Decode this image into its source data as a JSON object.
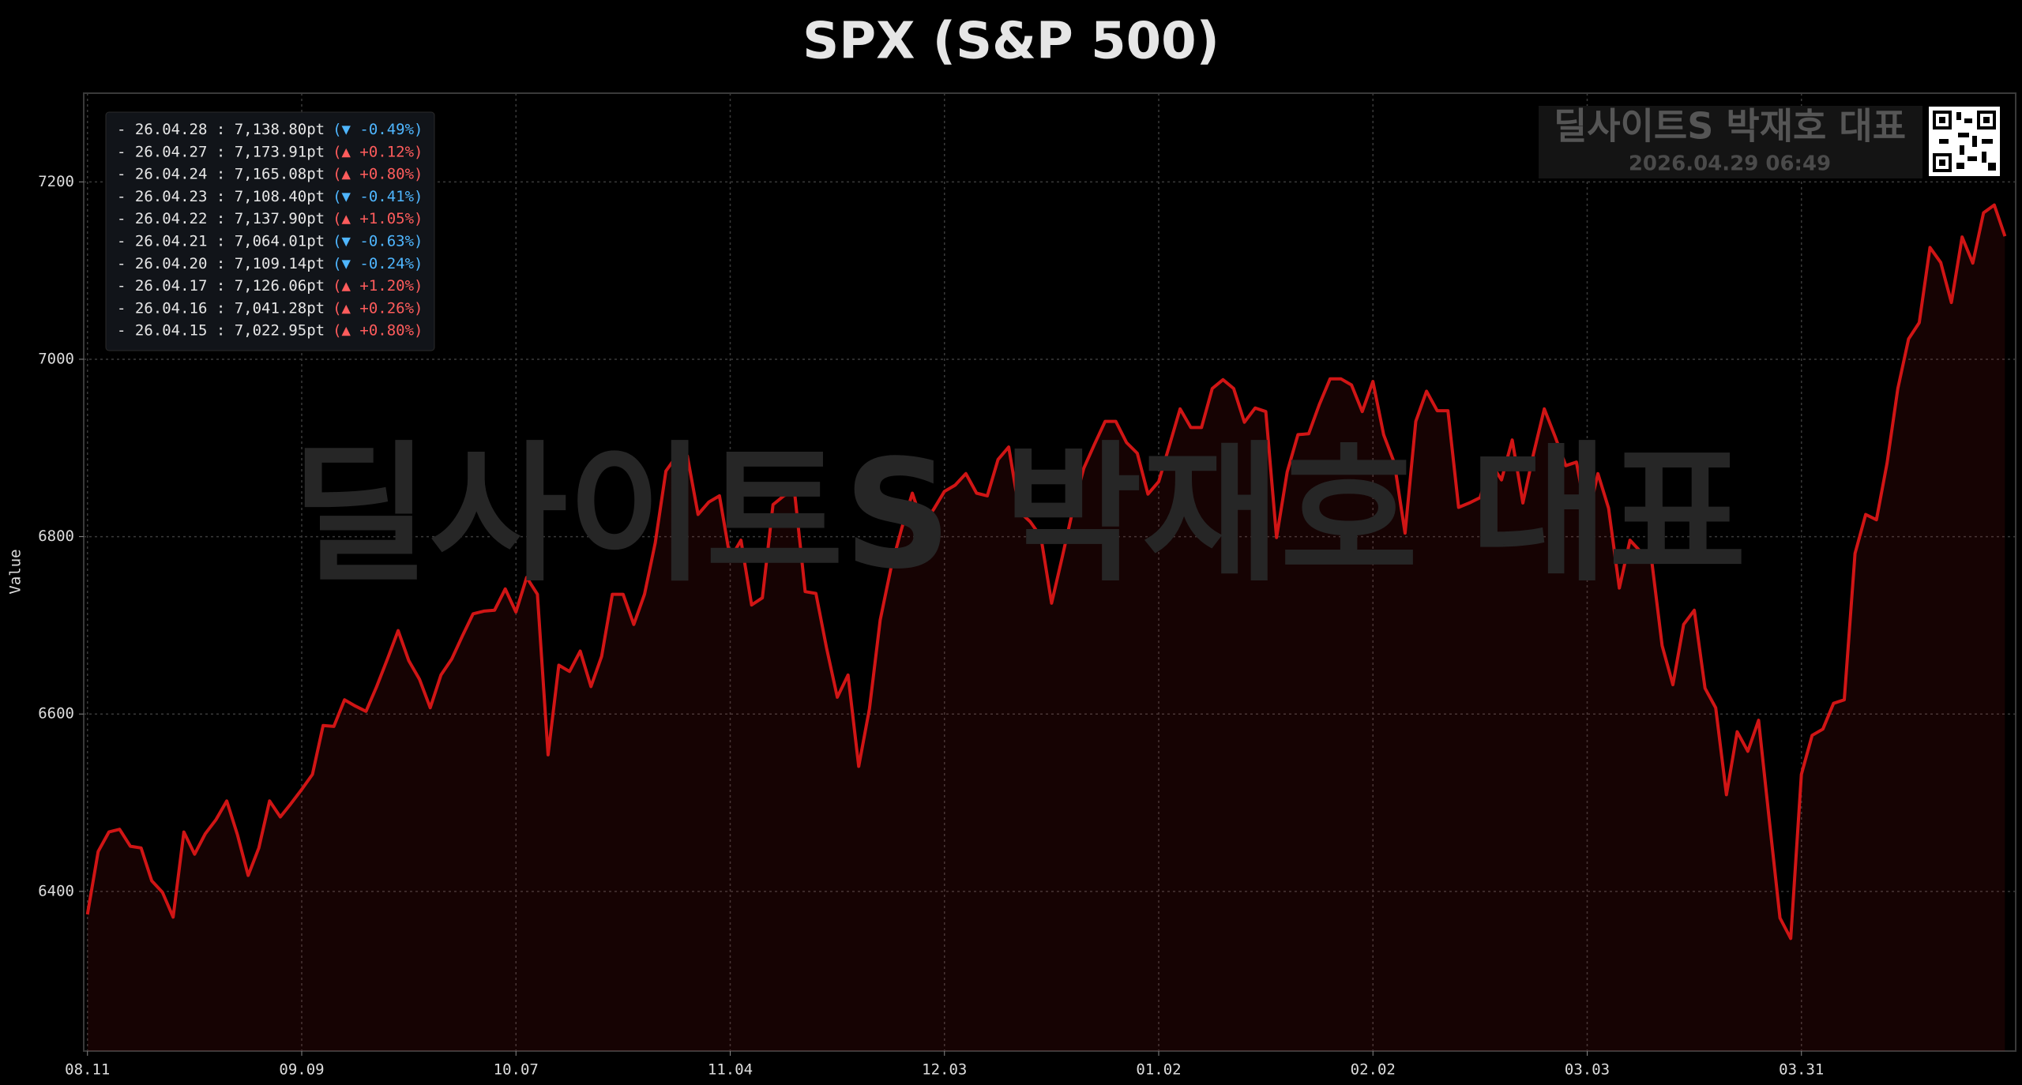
{
  "chart_data": {
    "type": "line",
    "title": "SPX (S&P 500)",
    "y_label": "Value",
    "categories": [
      "08.11",
      null,
      null,
      null,
      null,
      null,
      null,
      null,
      null,
      null,
      null,
      null,
      null,
      null,
      null,
      null,
      null,
      null,
      null,
      null,
      "09.09",
      null,
      null,
      null,
      null,
      null,
      null,
      null,
      null,
      null,
      null,
      null,
      null,
      null,
      null,
      null,
      null,
      null,
      null,
      null,
      "10.07",
      null,
      null,
      null,
      null,
      null,
      null,
      null,
      null,
      null,
      null,
      null,
      null,
      null,
      null,
      null,
      null,
      null,
      null,
      null,
      "11.04",
      null,
      null,
      null,
      null,
      null,
      null,
      null,
      null,
      null,
      null,
      null,
      null,
      null,
      null,
      null,
      null,
      null,
      null,
      null,
      "12.03",
      null,
      null,
      null,
      null,
      null,
      null,
      null,
      null,
      null,
      null,
      null,
      null,
      null,
      null,
      null,
      null,
      null,
      null,
      null,
      "01.02",
      null,
      null,
      null,
      null,
      null,
      null,
      null,
      null,
      null,
      null,
      null,
      null,
      null,
      null,
      null,
      null,
      null,
      null,
      null,
      "02.02",
      null,
      null,
      null,
      null,
      null,
      null,
      null,
      null,
      null,
      null,
      null,
      null,
      null,
      null,
      null,
      null,
      null,
      null,
      null,
      "03.03",
      null,
      null,
      null,
      null,
      null,
      null,
      null,
      null,
      null,
      null,
      null,
      null,
      null,
      null,
      null,
      null,
      null,
      null,
      null,
      "03.31",
      null,
      null,
      null,
      null,
      null,
      null,
      null,
      null,
      null,
      null,
      null,
      null,
      null,
      null,
      null,
      null,
      null,
      null,
      null
    ],
    "series": [
      {
        "color": "#d01515",
        "fill": "rgba(200,30,30,0.11)",
        "values": [
          6374,
          6445,
          6467,
          6470,
          6451,
          6449,
          6412,
          6399,
          6371,
          6467,
          6442,
          6465,
          6481,
          6502,
          6464,
          6418,
          6449,
          6502,
          6484,
          6499,
          6515,
          6532,
          6587,
          6586,
          6616,
          6609,
          6603,
          6631,
          6662,
          6694,
          6660,
          6639,
          6607,
          6644,
          6662,
          6688,
          6713,
          6716,
          6717,
          6741,
          6715,
          6754,
          6735,
          6554,
          6655,
          6648,
          6671,
          6631,
          6665,
          6735,
          6735,
          6701,
          6735,
          6793,
          6874,
          6891,
          6891,
          6825,
          6839,
          6846,
          6775,
          6796,
          6723,
          6731,
          6836,
          6846,
          6851,
          6738,
          6736,
          6674,
          6619,
          6644,
          6541,
          6606,
          6706,
          6764,
          6809,
          6849,
          6813,
          6831,
          6851,
          6858,
          6871,
          6849,
          6846,
          6887,
          6901,
          6828,
          6817,
          6800,
          6725,
          6777,
          6831,
          6877,
          6904,
          6930,
          6930,
          6906,
          6894,
          6848,
          6862,
          6903,
          6944,
          6923,
          6923,
          6967,
          6977,
          6967,
          6929,
          6945,
          6941,
          6799,
          6873,
          6915,
          6916,
          6949,
          6978,
          6978,
          6971,
          6941,
          6975,
          6915,
          6883,
          6804,
          6930,
          6964,
          6942,
          6942,
          6833,
          6838,
          6844,
          6883,
          6864,
          6909,
          6838,
          6894,
          6944,
          6913,
          6880,
          6884,
          6819,
          6871,
          6832,
          6742,
          6796,
          6783,
          6775,
          6677,
          6633,
          6701,
          6717,
          6629,
          6607,
          6509,
          6580,
          6558,
          6593,
          6480,
          6370,
          6347,
          6532,
          6576,
          6583,
          6612,
          6616,
          6781,
          6825,
          6819,
          6883,
          6967,
          7022.95,
          7041.28,
          7126.06,
          7109.14,
          7064.01,
          7137.9,
          7108.4,
          7165.08,
          7173.91,
          7138.8
        ]
      }
    ],
    "ylim": [
      6220,
      7300
    ],
    "yticks": [
      6400,
      6600,
      6800,
      7000,
      7200
    ],
    "grid": true
  },
  "info_box": {
    "entries": [
      {
        "label": "- 26.04.28 : 7,138.80pt",
        "change": "(▼ -0.49%)",
        "color": "#4fb6ff"
      },
      {
        "label": "- 26.04.27 : 7,173.91pt",
        "change": "(▲ +0.12%)",
        "color": "#ff5c5c"
      },
      {
        "label": "- 26.04.24 : 7,165.08pt",
        "change": "(▲ +0.80%)",
        "color": "#ff5c5c"
      },
      {
        "label": "- 26.04.23 : 7,108.40pt",
        "change": "(▼ -0.41%)",
        "color": "#4fb6ff"
      },
      {
        "label": "- 26.04.22 : 7,137.90pt",
        "change": "(▲ +1.05%)",
        "color": "#ff5c5c"
      },
      {
        "label": "- 26.04.21 : 7,064.01pt",
        "change": "(▼ -0.63%)",
        "color": "#4fb6ff"
      },
      {
        "label": "- 26.04.20 : 7,109.14pt",
        "change": "(▼ -0.24%)",
        "color": "#4fb6ff"
      },
      {
        "label": "- 26.04.17 : 7,126.06pt",
        "change": "(▲ +1.20%)",
        "color": "#ff5c5c"
      },
      {
        "label": "- 26.04.16 : 7,041.28pt",
        "change": "(▲ +0.26%)",
        "color": "#ff5c5c"
      },
      {
        "label": "- 26.04.15 : 7,022.95pt",
        "change": "(▲ +0.80%)",
        "color": "#ff5c5c"
      }
    ]
  },
  "watermark": {
    "text": "딜사이트S 박재호 대표",
    "badge_title": "딜사이트S 박재호 대표",
    "badge_time": "2026.04.29 06:49"
  }
}
